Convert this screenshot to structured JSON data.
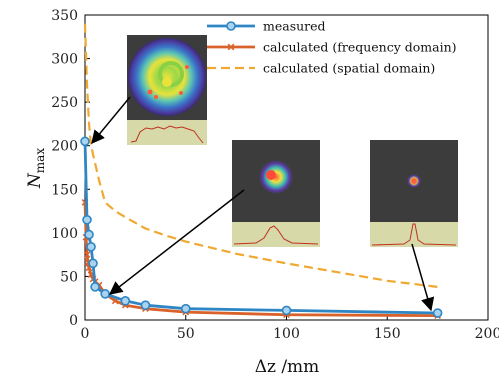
{
  "chart_data": {
    "type": "line",
    "xlabel": "Δz /mm",
    "ylabel_main": "N",
    "ylabel_sub": "max",
    "xlim": [
      0,
      200
    ],
    "ylim": [
      0,
      350
    ],
    "xticks": [
      0,
      50,
      100,
      150,
      200
    ],
    "yticks": [
      0,
      50,
      100,
      150,
      200,
      250,
      300,
      350
    ],
    "legend_position": "top-right",
    "series": [
      {
        "name": "measured",
        "color": "#2f86c4",
        "marker": "circle",
        "x": [
          0,
          1,
          2,
          3,
          4,
          5,
          10,
          20,
          30,
          50,
          100,
          175
        ],
        "y": [
          205,
          115,
          98,
          84,
          65,
          38,
          30,
          22,
          17,
          13,
          11,
          8
        ]
      },
      {
        "name": "calculated (frequency domain)",
        "color": "#d9622b",
        "marker": "x",
        "x": [
          0,
          0.5,
          1,
          1.5,
          2,
          3,
          4,
          5,
          7,
          10,
          15,
          20,
          30,
          50,
          100,
          175
        ],
        "y": [
          135,
          95,
          75,
          66,
          60,
          52,
          47,
          44,
          40,
          30,
          22,
          17,
          13,
          9,
          6,
          5
        ]
      },
      {
        "name": "calculated (spatial domain)",
        "color": "#f0a830",
        "marker": "none",
        "dashed": true,
        "x": [
          0,
          1,
          2,
          3,
          5,
          7,
          10,
          15,
          20,
          30,
          40,
          50,
          75,
          100,
          125,
          150,
          175
        ],
        "y": [
          340,
          270,
          225,
          200,
          180,
          160,
          135,
          125,
          118,
          105,
          97,
          90,
          76,
          65,
          55,
          45,
          38
        ]
      }
    ]
  }
}
